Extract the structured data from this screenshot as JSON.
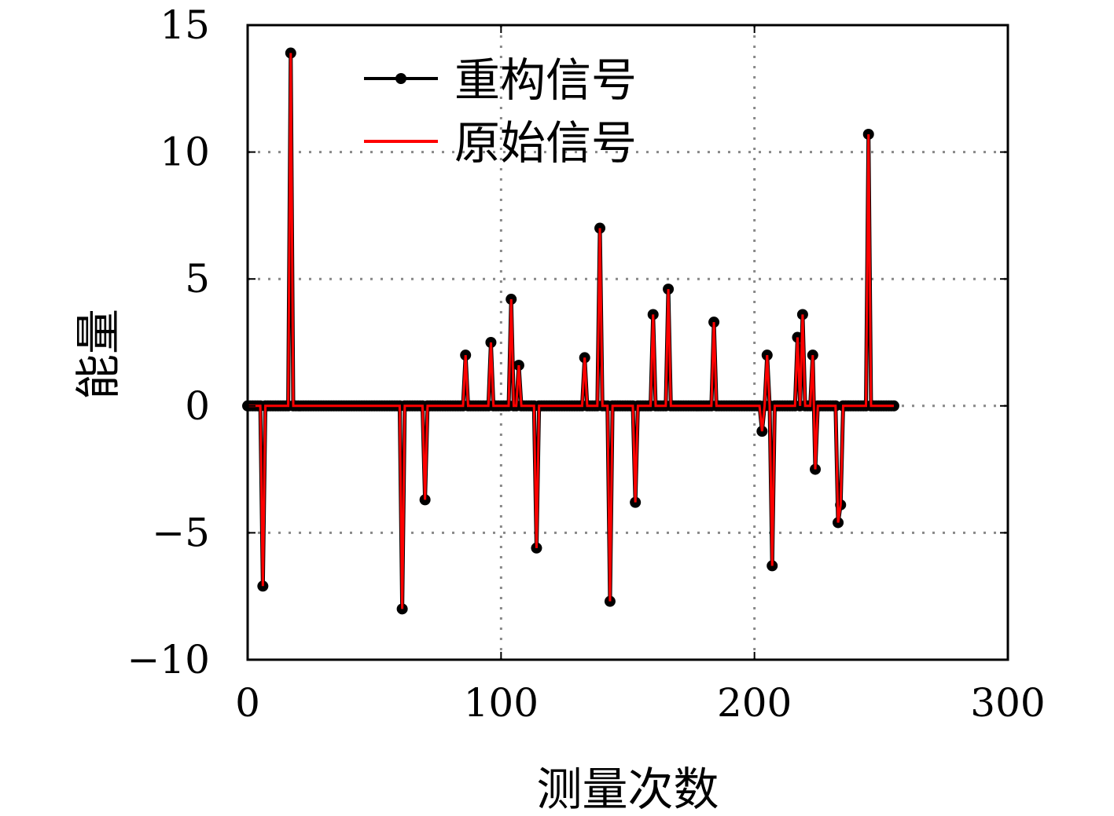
{
  "chart_data": {
    "type": "line",
    "title": "",
    "xlabel": "测量次数",
    "ylabel": "能量",
    "xlim": [
      0,
      300
    ],
    "ylim": [
      -10,
      15
    ],
    "xticks": [
      0,
      100,
      200,
      300
    ],
    "yticks": [
      -10,
      -5,
      0,
      5,
      10,
      15
    ],
    "xtick_labels": [
      "0",
      "100",
      "200",
      "300"
    ],
    "ytick_labels": [
      "−10",
      "−5",
      "0",
      "5",
      "10",
      "15"
    ],
    "grid": true,
    "legend_position": "top-left",
    "n_points": 256,
    "spikes": [
      {
        "x": 6,
        "y": -7.1
      },
      {
        "x": 17,
        "y": 13.9
      },
      {
        "x": 61,
        "y": -8.0
      },
      {
        "x": 70,
        "y": -3.7
      },
      {
        "x": 86,
        "y": 2.0
      },
      {
        "x": 96,
        "y": 2.5
      },
      {
        "x": 104,
        "y": 4.2
      },
      {
        "x": 107,
        "y": 1.6
      },
      {
        "x": 114,
        "y": -5.6
      },
      {
        "x": 133,
        "y": 1.9
      },
      {
        "x": 139,
        "y": 7.0
      },
      {
        "x": 143,
        "y": -7.7
      },
      {
        "x": 153,
        "y": -3.8
      },
      {
        "x": 160,
        "y": 3.6
      },
      {
        "x": 166,
        "y": 4.6
      },
      {
        "x": 184,
        "y": 3.3
      },
      {
        "x": 203,
        "y": -1.0
      },
      {
        "x": 205,
        "y": 2.0
      },
      {
        "x": 207,
        "y": -6.3
      },
      {
        "x": 217,
        "y": 2.7
      },
      {
        "x": 219,
        "y": 3.6
      },
      {
        "x": 223,
        "y": 2.0
      },
      {
        "x": 224,
        "y": -2.5
      },
      {
        "x": 233,
        "y": -4.6
      },
      {
        "x": 234,
        "y": -3.9
      },
      {
        "x": 245,
        "y": 10.7
      }
    ],
    "series": [
      {
        "name": "重构信号",
        "color": "#000000",
        "marker": "circle"
      },
      {
        "name": "原始信号",
        "color": "#ff0000",
        "marker": "none"
      }
    ]
  }
}
